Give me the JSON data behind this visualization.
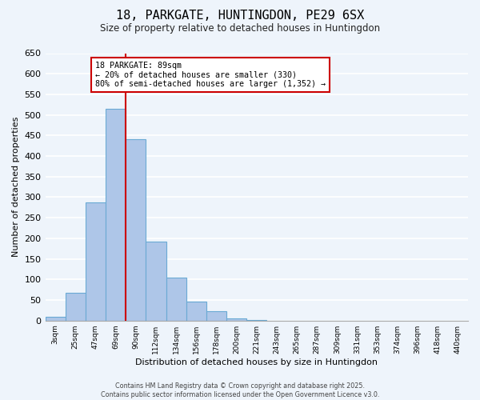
{
  "title": "18, PARKGATE, HUNTINGDON, PE29 6SX",
  "subtitle": "Size of property relative to detached houses in Huntingdon",
  "xlabel": "Distribution of detached houses by size in Huntingdon",
  "ylabel": "Number of detached properties",
  "bin_labels": [
    "3sqm",
    "25sqm",
    "47sqm",
    "69sqm",
    "90sqm",
    "112sqm",
    "134sqm",
    "156sqm",
    "178sqm",
    "200sqm",
    "221sqm",
    "243sqm",
    "265sqm",
    "287sqm",
    "309sqm",
    "331sqm",
    "353sqm",
    "374sqm",
    "396sqm",
    "418sqm",
    "440sqm"
  ],
  "bin_values": [
    10,
    67,
    288,
    515,
    440,
    192,
    105,
    46,
    22,
    5,
    1,
    0,
    0,
    0,
    0,
    0,
    0,
    0,
    0,
    0,
    0
  ],
  "bar_color": "#aec6e8",
  "bar_edge_color": "#6aaad4",
  "vline_x_index": 3,
  "vline_color": "#cc0000",
  "ylim": [
    0,
    650
  ],
  "yticks": [
    0,
    50,
    100,
    150,
    200,
    250,
    300,
    350,
    400,
    450,
    500,
    550,
    600,
    650
  ],
  "annotation_title": "18 PARKGATE: 89sqm",
  "annotation_line1": "← 20% of detached houses are smaller (330)",
  "annotation_line2": "80% of semi-detached houses are larger (1,352) →",
  "annotation_box_color": "#cc0000",
  "footer_line1": "Contains HM Land Registry data © Crown copyright and database right 2025.",
  "footer_line2": "Contains public sector information licensed under the Open Government Licence v3.0.",
  "background_color": "#eef4fb",
  "grid_color": "#ffffff"
}
